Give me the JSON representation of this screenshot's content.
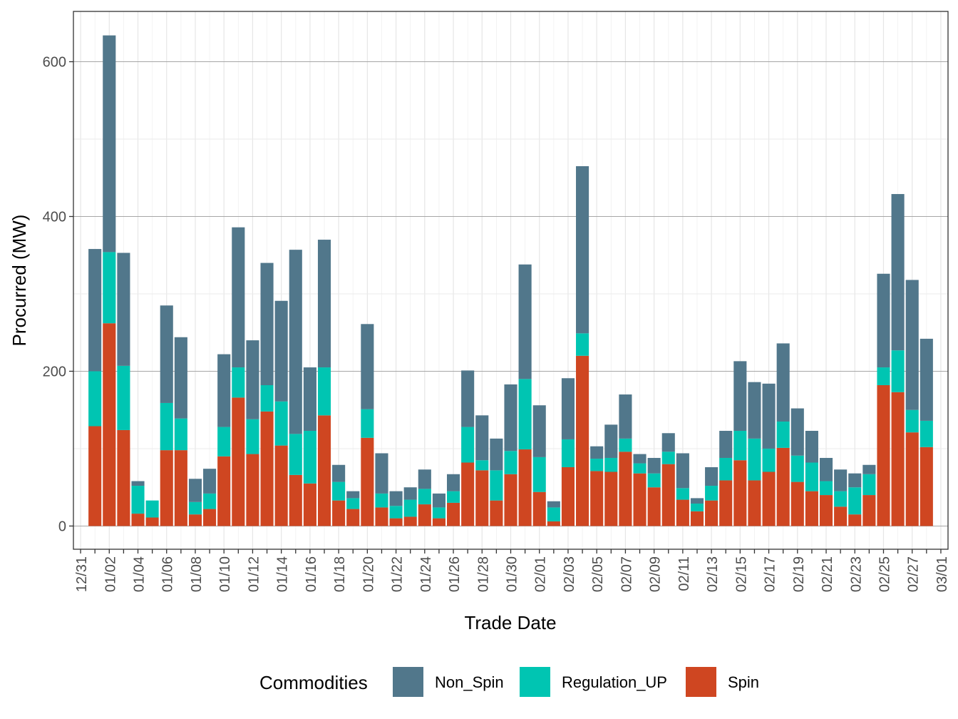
{
  "chart_data": {
    "type": "bar",
    "stacked": true,
    "title": "",
    "xlabel": "Trade Date",
    "ylabel": "Procurred (MW)",
    "ylim": [
      -30,
      665
    ],
    "y_ticks": [
      0,
      200,
      400,
      600
    ],
    "x_tick_labels": [
      "12/31",
      "01/02",
      "01/04",
      "01/06",
      "01/08",
      "01/10",
      "01/12",
      "01/14",
      "01/16",
      "01/18",
      "01/20",
      "01/22",
      "01/24",
      "01/26",
      "01/28",
      "01/30",
      "02/01",
      "02/03",
      "02/05",
      "02/07",
      "02/09",
      "02/11",
      "02/13",
      "02/15",
      "02/17",
      "02/19",
      "02/21",
      "02/23",
      "02/25",
      "02/27",
      "03/01"
    ],
    "legend": {
      "title": "Commodities",
      "position": "bottom",
      "entries": [
        "Non_Spin",
        "Regulation_UP",
        "Spin"
      ]
    },
    "colors": {
      "Non_Spin": "#51778b",
      "Regulation_UP": "#00c5b2",
      "Spin": "#cf4621"
    },
    "grid": true,
    "dates": [
      "01/01",
      "01/02",
      "01/03",
      "01/04",
      "01/05",
      "01/06",
      "01/07",
      "01/08",
      "01/09",
      "01/10",
      "01/11",
      "01/12",
      "01/13",
      "01/14",
      "01/15",
      "01/16",
      "01/17",
      "01/18",
      "01/19",
      "01/20",
      "01/21",
      "01/22",
      "01/23",
      "01/24",
      "01/25",
      "01/26",
      "01/27",
      "01/28",
      "01/29",
      "01/30",
      "01/31",
      "02/01",
      "02/02",
      "02/03",
      "02/04",
      "02/05",
      "02/06",
      "02/07",
      "02/08",
      "02/09",
      "02/10",
      "02/11",
      "02/12",
      "02/13",
      "02/14",
      "02/15",
      "02/16",
      "02/17",
      "02/18",
      "02/19",
      "02/20",
      "02/21",
      "02/22",
      "02/23",
      "02/24",
      "02/25",
      "02/26",
      "02/27",
      "02/28"
    ],
    "series": [
      {
        "name": "Spin",
        "values": [
          129,
          262,
          124,
          16,
          11,
          98,
          98,
          15,
          22,
          90,
          166,
          93,
          148,
          104,
          66,
          55,
          143,
          33,
          22,
          114,
          24,
          10,
          12,
          28,
          10,
          30,
          82,
          72,
          33,
          67,
          99,
          44,
          6,
          76,
          220,
          71,
          70,
          96,
          68,
          50,
          80,
          34,
          19,
          33,
          59,
          85,
          59,
          70,
          101,
          57,
          45,
          40,
          25,
          15,
          40,
          182,
          173,
          121,
          102
        ]
      },
      {
        "name": "Regulation_UP",
        "values": [
          71,
          92,
          83,
          36,
          22,
          61,
          41,
          16,
          20,
          38,
          39,
          45,
          34,
          57,
          53,
          68,
          62,
          24,
          14,
          37,
          18,
          16,
          22,
          20,
          14,
          15,
          46,
          13,
          39,
          30,
          91,
          45,
          18,
          36,
          29,
          16,
          18,
          17,
          13,
          18,
          16,
          15,
          10,
          19,
          29,
          38,
          54,
          30,
          34,
          34,
          37,
          18,
          20,
          35,
          27,
          23,
          54,
          29,
          34
        ]
      },
      {
        "name": "Non_Spin",
        "values": [
          158,
          280,
          146,
          6,
          0,
          126,
          105,
          30,
          32,
          94,
          181,
          102,
          158,
          130,
          238,
          82,
          165,
          22,
          9,
          110,
          52,
          19,
          16,
          25,
          18,
          22,
          73,
          58,
          41,
          86,
          148,
          67,
          8,
          79,
          216,
          16,
          43,
          57,
          12,
          20,
          24,
          45,
          7,
          24,
          35,
          90,
          73,
          84,
          101,
          61,
          41,
          30,
          28,
          18,
          12,
          121,
          202,
          168,
          106
        ]
      }
    ]
  }
}
